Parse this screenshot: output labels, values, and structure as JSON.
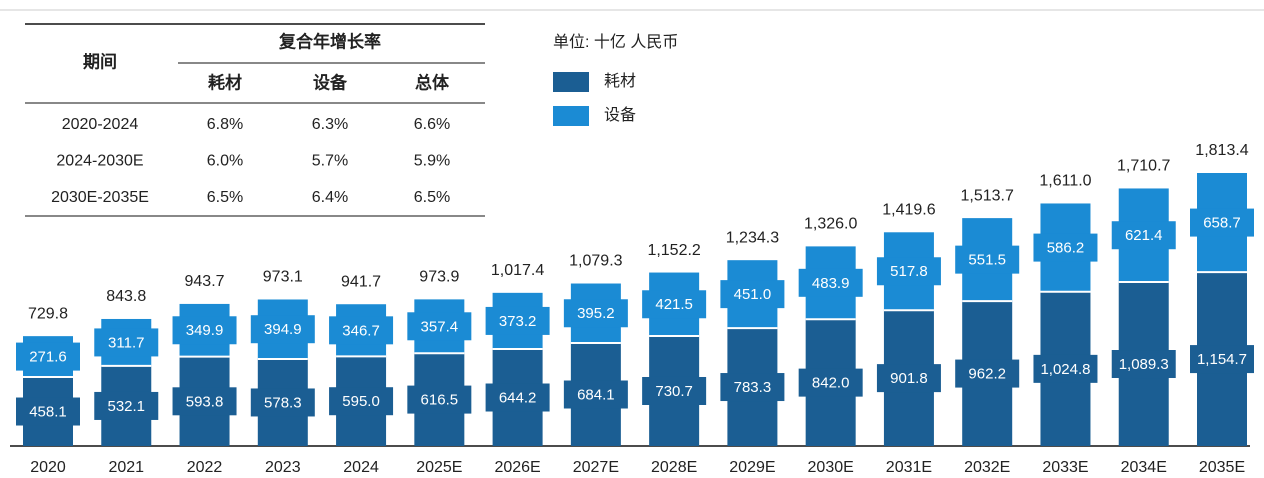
{
  "chart_data": {
    "type": "stacked-bar",
    "unit": "单位: 十亿 人民币",
    "categories": [
      "2020",
      "2021",
      "2022",
      "2023",
      "2024",
      "2025E",
      "2026E",
      "2027E",
      "2028E",
      "2029E",
      "2030E",
      "2031E",
      "2032E",
      "2033E",
      "2034E",
      "2035E"
    ],
    "series": [
      {
        "name": "耗材",
        "color": "#1b5e93",
        "values": [
          458.1,
          532.1,
          593.8,
          578.3,
          595.0,
          616.5,
          644.2,
          684.1,
          730.7,
          783.3,
          842.0,
          901.8,
          962.2,
          1024.8,
          1089.3,
          1154.7
        ],
        "value_labels": [
          "458.1",
          "532.1",
          "593.8",
          "578.3",
          "595.0",
          "616.5",
          "644.2",
          "684.1",
          "730.7",
          "783.3",
          "842.0",
          "901.8",
          "962.2",
          "1,024.8",
          "1,089.3",
          "1,154.7"
        ]
      },
      {
        "name": "设备",
        "color": "#1b8bd4",
        "values": [
          271.6,
          311.7,
          349.9,
          394.9,
          346.7,
          357.4,
          373.2,
          395.2,
          421.5,
          451.0,
          483.9,
          517.8,
          551.5,
          586.2,
          621.4,
          658.7
        ],
        "value_labels": [
          "271.6",
          "311.7",
          "349.9",
          "394.9",
          "346.7",
          "357.4",
          "373.2",
          "395.2",
          "421.5",
          "451.0",
          "483.9",
          "517.8",
          "551.5",
          "586.2",
          "621.4",
          "658.7"
        ]
      }
    ],
    "totals": {
      "values": [
        729.8,
        843.8,
        943.7,
        973.1,
        941.7,
        973.9,
        1017.4,
        1079.3,
        1152.2,
        1234.3,
        1326.0,
        1419.6,
        1513.7,
        1611.0,
        1710.7,
        1813.4
      ],
      "value_labels": [
        "729.8",
        "843.8",
        "943.7",
        "973.1",
        "941.7",
        "973.9",
        "1,017.4",
        "1,079.3",
        "1,152.2",
        "1,234.3",
        "1,326.0",
        "1,419.6",
        "1,513.7",
        "1,611.0",
        "1,710.7",
        "1,813.4"
      ]
    }
  },
  "table": {
    "header": {
      "period": "期间",
      "group": "复合年增长率",
      "columns": [
        "耗材",
        "设备",
        "总体"
      ]
    },
    "rows": [
      [
        "2020-2024",
        "6.8%",
        "6.3%",
        "6.6%"
      ],
      [
        "2024-2030E",
        "6.0%",
        "5.7%",
        "5.9%"
      ],
      [
        "2030E-2035E",
        "6.5%",
        "6.4%",
        "6.5%"
      ]
    ]
  }
}
